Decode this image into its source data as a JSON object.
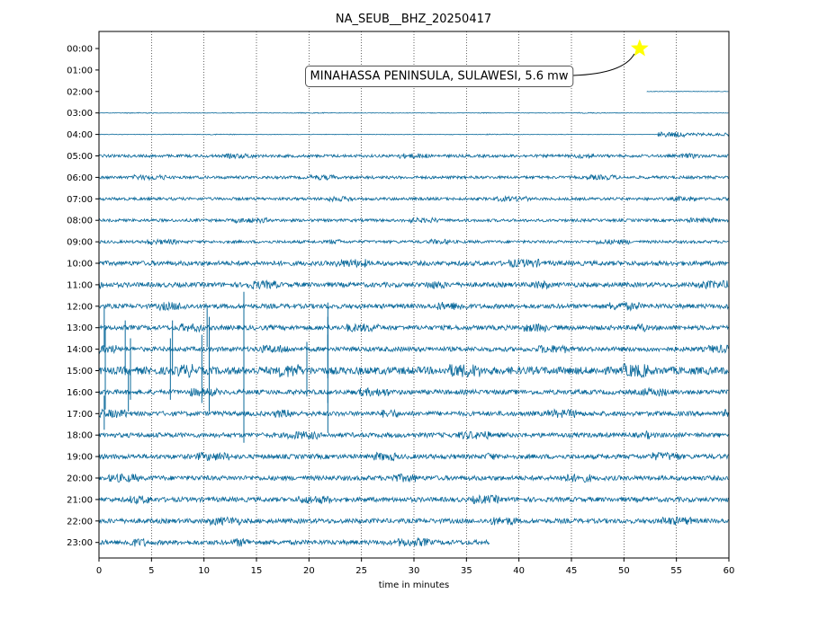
{
  "chart_data": {
    "type": "line",
    "title": "NA_SEUB__BHZ_20250417",
    "xlabel": "time in minutes",
    "ylabel": "",
    "xlim": [
      0,
      60
    ],
    "x_ticks": [
      0,
      5,
      10,
      15,
      20,
      25,
      30,
      35,
      40,
      45,
      50,
      55,
      60
    ],
    "y_tick_labels": [
      "00:00",
      "01:00",
      "02:00",
      "03:00",
      "04:00",
      "05:00",
      "06:00",
      "07:00",
      "08:00",
      "09:00",
      "10:00",
      "11:00",
      "12:00",
      "13:00",
      "14:00",
      "15:00",
      "16:00",
      "17:00",
      "18:00",
      "19:00",
      "20:00",
      "21:00",
      "22:00",
      "23:00"
    ],
    "grid": "vertical-dotted",
    "line_color": "#08689a",
    "event": {
      "label": "MINAHASSA PENINSULA, SULAWESI, 5.6 mw",
      "hour": "00:00",
      "minute": 51.5,
      "marker": "star",
      "marker_color": "#ffff00"
    },
    "traces": [
      {
        "hour": "00:00",
        "segments": []
      },
      {
        "hour": "01:00",
        "segments": []
      },
      {
        "hour": "02:00",
        "segments": [
          {
            "start": 52.2,
            "end": 60,
            "level": "flat"
          }
        ]
      },
      {
        "hour": "03:00",
        "segments": [
          {
            "start": 0,
            "end": 60,
            "level": "flat"
          }
        ]
      },
      {
        "hour": "04:00",
        "segments": [
          {
            "start": 0,
            "end": 53.2,
            "level": "flat"
          },
          {
            "start": 53.2,
            "end": 60,
            "level": "low"
          }
        ]
      },
      {
        "hour": "05:00",
        "segments": [
          {
            "start": 0,
            "end": 60,
            "level": "low"
          }
        ]
      },
      {
        "hour": "06:00",
        "segments": [
          {
            "start": 0,
            "end": 60,
            "level": "low"
          }
        ]
      },
      {
        "hour": "07:00",
        "segments": [
          {
            "start": 0,
            "end": 60,
            "level": "low"
          }
        ]
      },
      {
        "hour": "08:00",
        "segments": [
          {
            "start": 0,
            "end": 60,
            "level": "low"
          }
        ]
      },
      {
        "hour": "09:00",
        "segments": [
          {
            "start": 0,
            "end": 60,
            "level": "low"
          }
        ]
      },
      {
        "hour": "10:00",
        "segments": [
          {
            "start": 0,
            "end": 60,
            "level": "medium"
          }
        ]
      },
      {
        "hour": "11:00",
        "segments": [
          {
            "start": 0,
            "end": 60,
            "level": "medium"
          }
        ]
      },
      {
        "hour": "12:00",
        "segments": [
          {
            "start": 0,
            "end": 60,
            "level": "medium"
          }
        ]
      },
      {
        "hour": "13:00",
        "segments": [
          {
            "start": 0,
            "end": 60,
            "level": "medium"
          }
        ]
      },
      {
        "hour": "14:00",
        "segments": [
          {
            "start": 0,
            "end": 60,
            "level": "medium"
          }
        ]
      },
      {
        "hour": "15:00",
        "segments": [
          {
            "start": 0,
            "end": 60,
            "level": "high"
          }
        ]
      },
      {
        "hour": "16:00",
        "segments": [
          {
            "start": 0,
            "end": 60,
            "level": "medium"
          }
        ]
      },
      {
        "hour": "17:00",
        "segments": [
          {
            "start": 0,
            "end": 60,
            "level": "medium"
          }
        ]
      },
      {
        "hour": "18:00",
        "segments": [
          {
            "start": 0,
            "end": 60,
            "level": "medium"
          }
        ]
      },
      {
        "hour": "19:00",
        "segments": [
          {
            "start": 0,
            "end": 60,
            "level": "medium"
          }
        ]
      },
      {
        "hour": "20:00",
        "segments": [
          {
            "start": 0,
            "end": 60,
            "level": "medium"
          }
        ]
      },
      {
        "hour": "21:00",
        "segments": [
          {
            "start": 0,
            "end": 60,
            "level": "medium"
          }
        ]
      },
      {
        "hour": "22:00",
        "segments": [
          {
            "start": 0,
            "end": 60,
            "level": "medium"
          }
        ]
      },
      {
        "hour": "23:00",
        "segments": [
          {
            "start": 0,
            "end": 37.2,
            "level": "medium"
          }
        ]
      }
    ],
    "spikes": [
      {
        "hour": "13:00",
        "minute": 0.5,
        "size": 0.6
      },
      {
        "hour": "13:00",
        "minute": 10.3,
        "size": 0.6
      },
      {
        "hour": "13:00",
        "minute": 13.8,
        "size": 1.0
      },
      {
        "hour": "13:00",
        "minute": 21.8,
        "size": 0.7
      },
      {
        "hour": "14:00",
        "minute": 2.5,
        "size": 0.8
      },
      {
        "hour": "14:00",
        "minute": 7.0,
        "size": 0.8
      },
      {
        "hour": "14:00",
        "minute": 10.5,
        "size": 0.9
      },
      {
        "hour": "14:00",
        "minute": 13.8,
        "size": 1.1
      },
      {
        "hour": "14:00",
        "minute": 21.8,
        "size": 0.9
      },
      {
        "hour": "15:00",
        "minute": 0.6,
        "size": 1.2
      },
      {
        "hour": "15:00",
        "minute": 3.0,
        "size": 0.9
      },
      {
        "hour": "15:00",
        "minute": 6.8,
        "size": 0.9
      },
      {
        "hour": "15:00",
        "minute": 9.8,
        "size": 1.0
      },
      {
        "hour": "15:00",
        "minute": 13.8,
        "size": 1.3
      },
      {
        "hour": "15:00",
        "minute": 19.8,
        "size": 0.8
      },
      {
        "hour": "15:00",
        "minute": 21.8,
        "size": 1.0
      },
      {
        "hour": "16:00",
        "minute": 2.8,
        "size": 0.6
      },
      {
        "hour": "16:00",
        "minute": 10.5,
        "size": 0.6
      },
      {
        "hour": "16:00",
        "minute": 13.8,
        "size": 1.0
      },
      {
        "hour": "17:00",
        "minute": 0.5,
        "size": 0.5
      },
      {
        "hour": "17:00",
        "minute": 13.8,
        "size": 0.9
      },
      {
        "hour": "17:00",
        "minute": 21.8,
        "size": 0.6
      }
    ]
  }
}
